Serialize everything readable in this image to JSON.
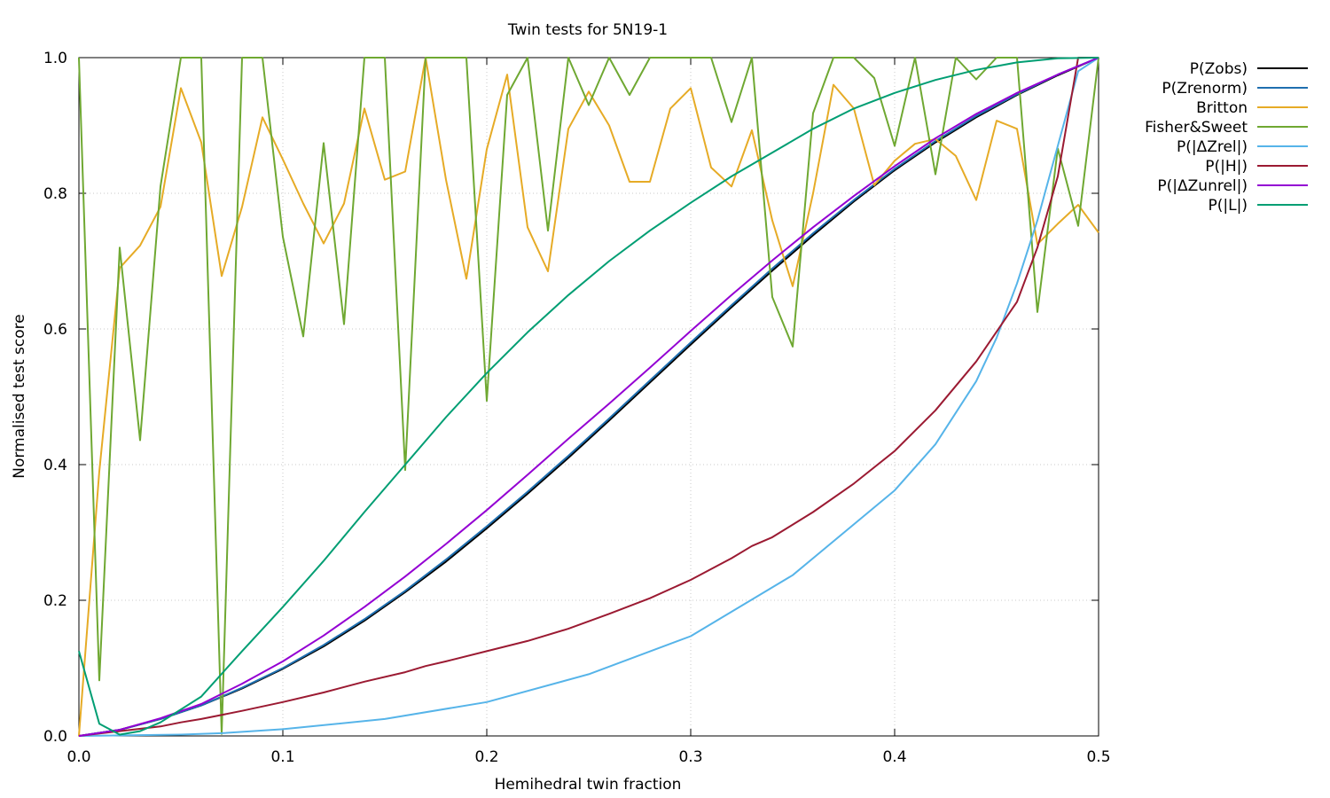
{
  "chart_data": {
    "type": "line",
    "title": "Twin tests for 5N19-1",
    "xlabel": "Hemihedral twin fraction",
    "ylabel": "Normalised test score",
    "xlim": [
      0.0,
      0.5
    ],
    "ylim": [
      0.0,
      1.0
    ],
    "xticks": [
      "0.0",
      "0.1",
      "0.2",
      "0.3",
      "0.4",
      "0.5"
    ],
    "yticks": [
      "0.0",
      "0.2",
      "0.4",
      "0.6",
      "0.8",
      "1.0"
    ],
    "grid": true,
    "legend_position": "outside-top-right",
    "series": [
      {
        "name": "P(Zobs)",
        "color": "#000000",
        "x": [
          0,
          0.02,
          0.04,
          0.06,
          0.08,
          0.1,
          0.12,
          0.14,
          0.16,
          0.18,
          0.2,
          0.22,
          0.24,
          0.26,
          0.28,
          0.3,
          0.32,
          0.34,
          0.36,
          0.38,
          0.4,
          0.42,
          0.44,
          0.46,
          0.48,
          0.5
        ],
        "y": [
          0,
          0.009,
          0.025,
          0.045,
          0.07,
          0.099,
          0.132,
          0.17,
          0.212,
          0.257,
          0.306,
          0.357,
          0.41,
          0.465,
          0.521,
          0.577,
          0.632,
          0.686,
          0.738,
          0.788,
          0.834,
          0.875,
          0.912,
          0.945,
          0.974,
          1.0
        ]
      },
      {
        "name": "P(Zrenorm)",
        "color": "#1f6faf",
        "x": [
          0,
          0.02,
          0.04,
          0.06,
          0.08,
          0.1,
          0.12,
          0.14,
          0.16,
          0.18,
          0.2,
          0.22,
          0.24,
          0.26,
          0.28,
          0.3,
          0.32,
          0.34,
          0.36,
          0.38,
          0.4,
          0.42,
          0.44,
          0.46,
          0.48,
          0.5
        ],
        "y": [
          0,
          0.009,
          0.025,
          0.045,
          0.071,
          0.1,
          0.134,
          0.172,
          0.214,
          0.26,
          0.309,
          0.36,
          0.413,
          0.468,
          0.524,
          0.58,
          0.635,
          0.689,
          0.741,
          0.79,
          0.836,
          0.877,
          0.914,
          0.946,
          0.975,
          1.0
        ]
      },
      {
        "name": "Britton",
        "color": "#e6ab26",
        "x": [
          0,
          0.01,
          0.02,
          0.03,
          0.04,
          0.05,
          0.06,
          0.07,
          0.08,
          0.09,
          0.1,
          0.11,
          0.12,
          0.13,
          0.14,
          0.15,
          0.16,
          0.17,
          0.18,
          0.19,
          0.2,
          0.21,
          0.22,
          0.23,
          0.24,
          0.25,
          0.26,
          0.27,
          0.28,
          0.29,
          0.3,
          0.31,
          0.32,
          0.33,
          0.34,
          0.35,
          0.36,
          0.37,
          0.38,
          0.39,
          0.4,
          0.41,
          0.42,
          0.43,
          0.44,
          0.45,
          0.46,
          0.47,
          0.48,
          0.49,
          0.5
        ],
        "y": [
          0.0,
          0.39,
          0.69,
          0.723,
          0.78,
          0.955,
          0.875,
          0.678,
          0.78,
          0.912,
          0.85,
          0.785,
          0.726,
          0.785,
          0.925,
          0.82,
          0.832,
          1.0,
          0.82,
          0.674,
          0.865,
          0.975,
          0.75,
          0.685,
          0.895,
          0.95,
          0.9,
          0.817,
          0.817,
          0.925,
          0.955,
          0.838,
          0.81,
          0.893,
          0.76,
          0.663,
          0.8,
          0.96,
          0.925,
          0.812,
          0.848,
          0.873,
          0.88,
          0.855,
          0.79,
          0.907,
          0.895,
          0.725,
          0.755,
          0.783,
          0.742
        ]
      },
      {
        "name": "Fisher&Sweet",
        "color": "#6fa832",
        "x": [
          0,
          0.01,
          0.02,
          0.03,
          0.04,
          0.05,
          0.06,
          0.07,
          0.08,
          0.09,
          0.1,
          0.11,
          0.12,
          0.13,
          0.14,
          0.15,
          0.16,
          0.17,
          0.18,
          0.19,
          0.2,
          0.21,
          0.22,
          0.23,
          0.24,
          0.25,
          0.26,
          0.27,
          0.28,
          0.29,
          0.3,
          0.31,
          0.32,
          0.33,
          0.34,
          0.35,
          0.36,
          0.37,
          0.38,
          0.39,
          0.4,
          0.41,
          0.42,
          0.43,
          0.44,
          0.45,
          0.46,
          0.47,
          0.48,
          0.49,
          0.5
        ],
        "y": [
          1.0,
          0.082,
          0.72,
          0.436,
          0.81,
          1.0,
          1.0,
          0.003,
          1.0,
          1.0,
          0.736,
          0.589,
          0.874,
          0.607,
          1.0,
          1.0,
          0.392,
          1.0,
          1.0,
          1.0,
          0.494,
          0.945,
          1.0,
          0.745,
          1.0,
          0.93,
          1.0,
          0.945,
          1.0,
          1.0,
          1.0,
          1.0,
          0.905,
          1.0,
          0.647,
          0.574,
          0.918,
          1.0,
          1.0,
          0.97,
          0.87,
          1.0,
          0.828,
          1.0,
          0.968,
          1.0,
          1.0,
          0.625,
          0.866,
          0.752,
          1.0
        ]
      },
      {
        "name": "P(|ΔZrel|)",
        "color": "#56b4e9",
        "x": [
          0,
          0.05,
          0.07,
          0.1,
          0.15,
          0.2,
          0.25,
          0.3,
          0.35,
          0.4,
          0.42,
          0.44,
          0.45,
          0.46,
          0.47,
          0.48,
          0.49,
          0.5
        ],
        "y": [
          0,
          0.002,
          0.004,
          0.01,
          0.025,
          0.05,
          0.091,
          0.147,
          0.237,
          0.362,
          0.43,
          0.523,
          0.587,
          0.667,
          0.76,
          0.87,
          0.98,
          1.0
        ]
      },
      {
        "name": "P(|H|)",
        "color": "#9b1a32",
        "x": [
          0,
          0.02,
          0.04,
          0.05,
          0.06,
          0.08,
          0.1,
          0.12,
          0.14,
          0.16,
          0.17,
          0.18,
          0.2,
          0.22,
          0.24,
          0.26,
          0.28,
          0.3,
          0.32,
          0.33,
          0.34,
          0.36,
          0.38,
          0.4,
          0.42,
          0.44,
          0.46,
          0.47,
          0.48,
          0.49,
          0.5
        ],
        "y": [
          0,
          0.007,
          0.014,
          0.02,
          0.025,
          0.037,
          0.05,
          0.064,
          0.08,
          0.094,
          0.103,
          0.11,
          0.125,
          0.14,
          0.158,
          0.18,
          0.203,
          0.23,
          0.262,
          0.28,
          0.293,
          0.33,
          0.372,
          0.42,
          0.48,
          0.552,
          0.64,
          0.72,
          0.825,
          1.0,
          1.0
        ]
      },
      {
        "name": "P(|ΔZunrel|)",
        "color": "#9400d3",
        "x": [
          0,
          0.02,
          0.04,
          0.06,
          0.08,
          0.1,
          0.12,
          0.14,
          0.16,
          0.18,
          0.2,
          0.22,
          0.24,
          0.26,
          0.28,
          0.3,
          0.32,
          0.34,
          0.36,
          0.38,
          0.4,
          0.42,
          0.44,
          0.46,
          0.48,
          0.5
        ],
        "y": [
          0,
          0.009,
          0.026,
          0.047,
          0.077,
          0.11,
          0.148,
          0.19,
          0.235,
          0.283,
          0.333,
          0.385,
          0.438,
          0.49,
          0.543,
          0.597,
          0.65,
          0.701,
          0.75,
          0.796,
          0.84,
          0.881,
          0.917,
          0.948,
          0.975,
          1.0
        ]
      },
      {
        "name": "P(|L|)",
        "color": "#009e73",
        "x": [
          0,
          0.01,
          0.02,
          0.03,
          0.04,
          0.06,
          0.08,
          0.1,
          0.12,
          0.14,
          0.16,
          0.18,
          0.2,
          0.22,
          0.24,
          0.26,
          0.28,
          0.3,
          0.32,
          0.34,
          0.36,
          0.38,
          0.4,
          0.42,
          0.44,
          0.46,
          0.48,
          0.5
        ],
        "y": [
          0.125,
          0.018,
          0.002,
          0.007,
          0.02,
          0.058,
          0.125,
          0.19,
          0.258,
          0.33,
          0.4,
          0.47,
          0.535,
          0.595,
          0.65,
          0.7,
          0.745,
          0.786,
          0.825,
          0.86,
          0.895,
          0.925,
          0.948,
          0.967,
          0.982,
          0.993,
          0.999,
          1.0
        ]
      }
    ]
  }
}
